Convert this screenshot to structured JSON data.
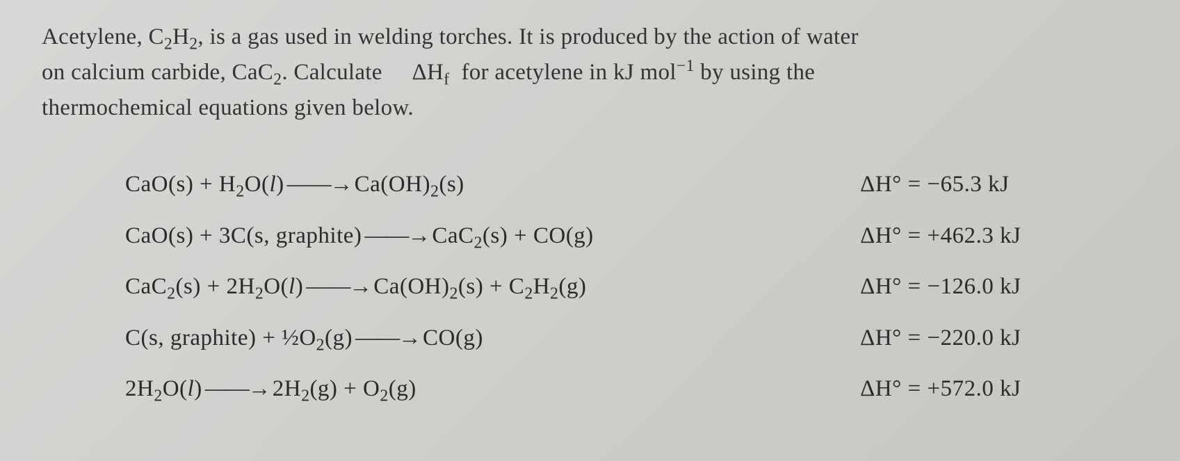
{
  "problem": {
    "line1": "Acetylene, C₂H₂, is a gas used in welding torches. It is produced by the action of water",
    "line2_part1": "on calcium carbide, CaC₂. Calculate",
    "line2_part2": "ΔH°f",
    "line2_part3": "for acetylene in kJ mol⁻¹ by using the",
    "line3": "thermochemical equations given below."
  },
  "equations": [
    {
      "reaction": "CaO(s) + H₂O(l) ⟶ Ca(OH)₂(s)",
      "enthalpy_label": "ΔH° =",
      "enthalpy_value": "−65.3 kJ"
    },
    {
      "reaction": "CaO(s) + 3C(s, graphite) ⟶ CaC₂(s) + CO(g)",
      "enthalpy_label": "ΔH° =",
      "enthalpy_value": "+462.3 kJ"
    },
    {
      "reaction": "CaC₂(s) + 2H₂O(l) ⟶ Ca(OH)₂(s) + C₂H₂(g)",
      "enthalpy_label": "ΔH° =",
      "enthalpy_value": "−126.0 kJ"
    },
    {
      "reaction": "C(s, graphite) + ½O₂(g) ⟶ CO(g)",
      "enthalpy_label": "ΔH° =",
      "enthalpy_value": "−220.0 kJ"
    },
    {
      "reaction": "2H₂O(l) ⟶ 2H₂(g) + O₂(g)",
      "enthalpy_label": "ΔH° =",
      "enthalpy_value": "+572.0 kJ"
    }
  ],
  "styling": {
    "background_gradient_start": "#d8d8d6",
    "background_gradient_end": "#c5c6c2",
    "text_color": "#2a2a2a",
    "font_family": "Times New Roman",
    "body_fontsize": 33,
    "equation_fontsize": 33,
    "line_height": 1.55,
    "equations_left_padding": 120,
    "equation_row_spacing": 24
  }
}
